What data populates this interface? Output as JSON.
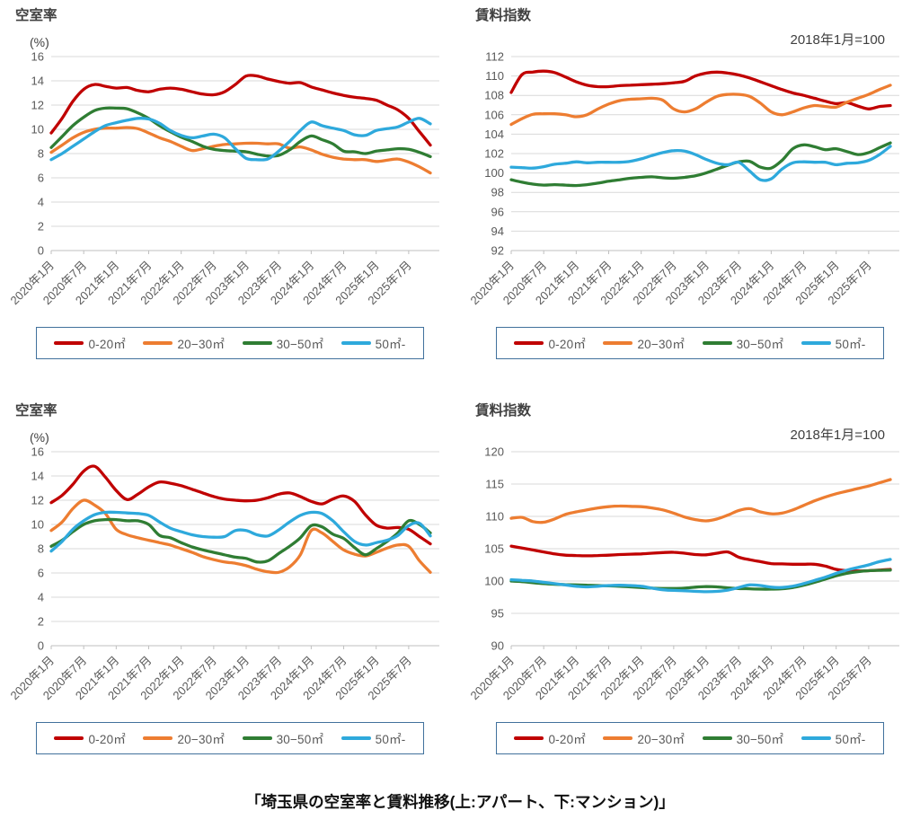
{
  "figure_caption": "「埼玉県の空室率と賃料推移(上:アパート、下:マンション)」",
  "legend": {
    "labels": [
      "0-20㎡",
      "20−30㎡",
      "30−50㎡",
      "50㎡-"
    ]
  },
  "colors": {
    "series": [
      "#c00000",
      "#ed7d31",
      "#2f7d33",
      "#2ea9dc"
    ],
    "grid": "#d9d9d9",
    "axis_line": "#bfbfbf",
    "axis_text": "#595959",
    "title_text": "#404040",
    "legend_border": "#41719c"
  },
  "x_axis": {
    "tick_labels": [
      "2020年1月",
      "2020年7月",
      "2021年1月",
      "2021年7月",
      "2022年1月",
      "2022年7月",
      "2023年1月",
      "2023年7月",
      "2024年1月",
      "2024年7月",
      "2025年1月",
      "2025年7月"
    ],
    "points_per_tick": 3,
    "n_points": 36,
    "point_interval_months": 2
  },
  "chart_data": [
    {
      "type": "line",
      "title": "空室率",
      "building_type": "アパート",
      "unit_label": "(%)",
      "note": "",
      "ylim": [
        0,
        16
      ],
      "y_step": 2,
      "legend_position": "bottom-boxed",
      "grid": true,
      "series": [
        {
          "name": "0-20㎡",
          "color_index": 0,
          "values": [
            9.7,
            10.9,
            12.3,
            13.3,
            13.7,
            13.55,
            13.4,
            13.45,
            13.2,
            13.1,
            13.3,
            13.4,
            13.3,
            13.1,
            12.9,
            12.85,
            13.1,
            13.7,
            14.4,
            14.4,
            14.15,
            13.95,
            13.8,
            13.85,
            13.5,
            13.25,
            13.0,
            12.8,
            12.65,
            12.55,
            12.4,
            12.0,
            11.6,
            10.9,
            9.8,
            8.7
          ]
        },
        {
          "name": "20−30㎡",
          "color_index": 1,
          "values": [
            8.1,
            8.7,
            9.3,
            9.75,
            10.0,
            10.1,
            10.1,
            10.15,
            10.05,
            9.7,
            9.3,
            9.0,
            8.6,
            8.25,
            8.4,
            8.6,
            8.75,
            8.8,
            8.85,
            8.85,
            8.8,
            8.8,
            8.45,
            8.55,
            8.3,
            7.95,
            7.7,
            7.55,
            7.5,
            7.5,
            7.35,
            7.45,
            7.55,
            7.3,
            6.9,
            6.4
          ]
        },
        {
          "name": "30−50㎡",
          "color_index": 2,
          "values": [
            8.5,
            9.4,
            10.3,
            11.0,
            11.55,
            11.75,
            11.75,
            11.7,
            11.35,
            10.9,
            10.3,
            9.8,
            9.35,
            9.0,
            8.6,
            8.35,
            8.25,
            8.2,
            8.15,
            7.95,
            7.8,
            7.85,
            8.3,
            9.0,
            9.45,
            9.15,
            8.8,
            8.2,
            8.15,
            8.0,
            8.2,
            8.3,
            8.4,
            8.35,
            8.1,
            7.75
          ]
        },
        {
          "name": "50㎡-",
          "color_index": 3,
          "values": [
            7.5,
            8.0,
            8.6,
            9.2,
            9.8,
            10.3,
            10.55,
            10.75,
            10.9,
            10.85,
            10.5,
            9.9,
            9.5,
            9.3,
            9.45,
            9.6,
            9.3,
            8.4,
            7.6,
            7.5,
            7.55,
            8.2,
            9.0,
            9.9,
            10.6,
            10.3,
            10.1,
            9.9,
            9.55,
            9.5,
            9.9,
            10.05,
            10.2,
            10.6,
            10.9,
            10.45
          ]
        }
      ]
    },
    {
      "type": "line",
      "title": "賃料指数",
      "building_type": "アパート",
      "unit_label": "",
      "note": "2018年1月=100",
      "ylim": [
        92,
        112
      ],
      "y_step": 2,
      "legend_position": "bottom-boxed",
      "grid": true,
      "series": [
        {
          "name": "0-20㎡",
          "color_index": 0,
          "values": [
            108.3,
            110.15,
            110.4,
            110.5,
            110.35,
            109.9,
            109.4,
            109.05,
            108.9,
            108.9,
            109.0,
            109.05,
            109.1,
            109.15,
            109.2,
            109.3,
            109.45,
            110.0,
            110.3,
            110.4,
            110.3,
            110.1,
            109.8,
            109.4,
            109.0,
            108.6,
            108.25,
            108.0,
            107.7,
            107.4,
            107.15,
            107.25,
            106.9,
            106.6,
            106.85,
            106.95
          ]
        },
        {
          "name": "20−30㎡",
          "color_index": 1,
          "values": [
            105.0,
            105.6,
            106.05,
            106.1,
            106.1,
            106.0,
            105.8,
            106.0,
            106.6,
            107.1,
            107.45,
            107.6,
            107.65,
            107.7,
            107.5,
            106.6,
            106.3,
            106.6,
            107.3,
            107.9,
            108.1,
            108.1,
            107.9,
            107.2,
            106.3,
            106.0,
            106.3,
            106.7,
            106.95,
            106.85,
            106.8,
            107.3,
            107.7,
            108.1,
            108.6,
            109.05
          ]
        },
        {
          "name": "30−50㎡",
          "color_index": 2,
          "values": [
            99.3,
            99.05,
            98.85,
            98.75,
            98.8,
            98.75,
            98.7,
            98.8,
            98.95,
            99.15,
            99.3,
            99.45,
            99.55,
            99.6,
            99.5,
            99.45,
            99.55,
            99.7,
            100.0,
            100.4,
            100.8,
            101.15,
            101.2,
            100.6,
            100.5,
            101.3,
            102.5,
            102.9,
            102.7,
            102.4,
            102.5,
            102.2,
            101.9,
            102.1,
            102.6,
            103.1
          ]
        },
        {
          "name": "50㎡-",
          "color_index": 3,
          "values": [
            100.6,
            100.55,
            100.5,
            100.65,
            100.9,
            101.0,
            101.15,
            101.05,
            101.1,
            101.1,
            101.1,
            101.2,
            101.45,
            101.8,
            102.1,
            102.3,
            102.25,
            101.9,
            101.4,
            101.0,
            100.85,
            101.1,
            100.2,
            99.3,
            99.4,
            100.4,
            101.05,
            101.15,
            101.1,
            101.1,
            100.85,
            101.0,
            101.05,
            101.3,
            101.9,
            102.75
          ]
        }
      ]
    },
    {
      "type": "line",
      "title": "空室率",
      "building_type": "マンション",
      "unit_label": "(%)",
      "note": "",
      "ylim": [
        0,
        16
      ],
      "y_step": 2,
      "legend_position": "bottom-boxed",
      "grid": true,
      "series": [
        {
          "name": "0-20㎡",
          "color_index": 0,
          "values": [
            11.8,
            12.4,
            13.3,
            14.4,
            14.8,
            13.9,
            12.8,
            12.05,
            12.5,
            13.1,
            13.5,
            13.4,
            13.2,
            12.9,
            12.6,
            12.3,
            12.1,
            12.0,
            11.95,
            12.0,
            12.2,
            12.5,
            12.6,
            12.3,
            11.9,
            11.7,
            12.1,
            12.35,
            11.9,
            10.8,
            9.95,
            9.7,
            9.75,
            9.6,
            9.0,
            8.4
          ]
        },
        {
          "name": "20−30㎡",
          "color_index": 1,
          "values": [
            9.5,
            10.2,
            11.3,
            12.0,
            11.6,
            10.9,
            9.6,
            9.15,
            8.9,
            8.7,
            8.5,
            8.3,
            8.0,
            7.7,
            7.35,
            7.1,
            6.9,
            6.8,
            6.6,
            6.3,
            6.1,
            6.05,
            6.5,
            7.5,
            9.5,
            9.3,
            8.6,
            7.9,
            7.55,
            7.4,
            7.7,
            8.05,
            8.3,
            8.2,
            7.0,
            6.05
          ]
        },
        {
          "name": "30−50㎡",
          "color_index": 2,
          "values": [
            8.2,
            8.7,
            9.4,
            10.0,
            10.3,
            10.4,
            10.4,
            10.3,
            10.3,
            10.0,
            9.1,
            8.9,
            8.5,
            8.15,
            7.9,
            7.7,
            7.5,
            7.3,
            7.2,
            6.9,
            7.0,
            7.6,
            8.2,
            8.9,
            9.9,
            9.8,
            9.2,
            8.85,
            8.1,
            7.5,
            8.0,
            8.6,
            9.3,
            10.3,
            10.0,
            9.3
          ]
        },
        {
          "name": "50㎡-",
          "color_index": 3,
          "values": [
            7.8,
            8.6,
            9.6,
            10.3,
            10.8,
            11.0,
            11.0,
            10.95,
            10.9,
            10.75,
            10.2,
            9.7,
            9.4,
            9.15,
            9.0,
            8.95,
            9.0,
            9.5,
            9.5,
            9.15,
            9.05,
            9.55,
            10.2,
            10.75,
            11.0,
            10.9,
            10.3,
            9.4,
            8.6,
            8.3,
            8.5,
            8.7,
            9.1,
            9.9,
            10.1,
            9.05
          ]
        }
      ]
    },
    {
      "type": "line",
      "title": "賃料指数",
      "building_type": "マンション",
      "unit_label": "",
      "note": "2018年1月=100",
      "ylim": [
        90,
        120
      ],
      "y_step": 5,
      "legend_position": "bottom-boxed",
      "grid": true,
      "series": [
        {
          "name": "0-20㎡",
          "color_index": 0,
          "values": [
            105.4,
            105.1,
            104.8,
            104.5,
            104.2,
            104.0,
            103.95,
            103.9,
            103.95,
            104.0,
            104.1,
            104.15,
            104.2,
            104.3,
            104.4,
            104.45,
            104.3,
            104.1,
            104.05,
            104.3,
            104.5,
            103.7,
            103.3,
            103.0,
            102.7,
            102.65,
            102.6,
            102.6,
            102.6,
            102.3,
            101.8,
            101.6,
            101.55,
            101.6,
            101.7,
            101.8
          ]
        },
        {
          "name": "20−30㎡",
          "color_index": 1,
          "values": [
            109.7,
            109.85,
            109.2,
            109.1,
            109.6,
            110.3,
            110.7,
            111.0,
            111.3,
            111.5,
            111.6,
            111.55,
            111.5,
            111.3,
            111.0,
            110.5,
            109.9,
            109.5,
            109.3,
            109.6,
            110.2,
            110.9,
            111.2,
            110.7,
            110.4,
            110.5,
            111.0,
            111.7,
            112.4,
            113.0,
            113.5,
            113.9,
            114.3,
            114.7,
            115.2,
            115.7
          ]
        },
        {
          "name": "30−50㎡",
          "color_index": 2,
          "values": [
            100.0,
            99.9,
            99.75,
            99.6,
            99.5,
            99.45,
            99.4,
            99.35,
            99.3,
            99.25,
            99.2,
            99.1,
            99.0,
            98.9,
            98.85,
            98.85,
            98.9,
            99.05,
            99.15,
            99.1,
            98.95,
            98.85,
            98.8,
            98.75,
            98.75,
            98.8,
            99.0,
            99.35,
            99.8,
            100.3,
            100.8,
            101.2,
            101.45,
            101.6,
            101.65,
            101.7
          ]
        },
        {
          "name": "50㎡-",
          "color_index": 3,
          "values": [
            100.2,
            100.1,
            100.0,
            99.8,
            99.6,
            99.4,
            99.2,
            99.1,
            99.2,
            99.3,
            99.35,
            99.3,
            99.2,
            98.9,
            98.65,
            98.55,
            98.5,
            98.4,
            98.35,
            98.4,
            98.6,
            99.0,
            99.4,
            99.3,
            99.05,
            99.0,
            99.2,
            99.6,
            100.1,
            100.6,
            101.2,
            101.7,
            102.1,
            102.5,
            103.0,
            103.35
          ]
        }
      ]
    }
  ]
}
